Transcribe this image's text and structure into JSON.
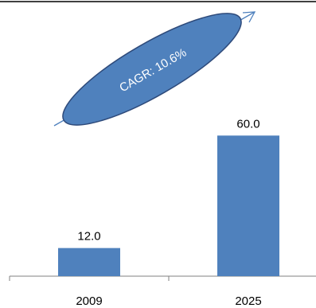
{
  "chart_data": {
    "type": "bar",
    "title": "",
    "xlabel": "",
    "ylabel": "",
    "categories": [
      "2009",
      "2025"
    ],
    "values": [
      12.0,
      60.0
    ],
    "data_labels": [
      "12.0",
      "60.0"
    ],
    "ylim": [
      0,
      72
    ],
    "grid": false,
    "legend": "none",
    "annotation": {
      "text": "CAGR: 10.6%",
      "shape": "ellipse with upward arrow"
    },
    "colors": {
      "bar": "#4f81bd",
      "ellipse_fill": "#4f81bd",
      "ellipse_stroke": "#2e4a7a",
      "arrow": "#4f81bd",
      "axis": "#808080",
      "top_rule": "#000000"
    }
  }
}
